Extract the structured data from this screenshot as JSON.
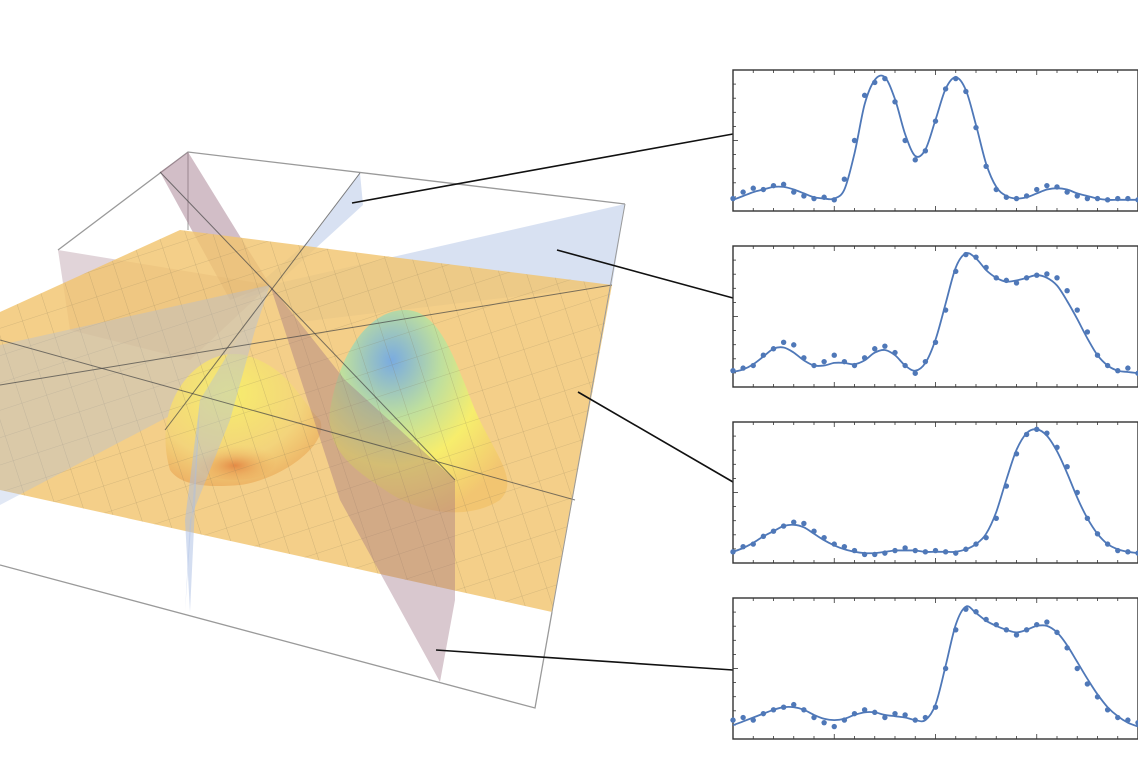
{
  "colors": {
    "series": "#4f78b8",
    "frame": "#333333",
    "leader": "#111111",
    "box": "#9a9a9a",
    "surface": "#f2c46f",
    "surface_peak": "#6fa8e8",
    "surface_yellow": "#f7f06a",
    "plane_pink": "#9c6f82",
    "plane_blue": "#a9bde3"
  },
  "surface_plot": {
    "type": "3d-surface",
    "grid": true,
    "slice_planes": 4
  },
  "chart_data": [
    {
      "type": "scatter",
      "fit": "line",
      "xlim": [
        0,
        40
      ],
      "ylim": [
        0,
        1
      ],
      "x": [
        0,
        1,
        2,
        3,
        4,
        5,
        6,
        7,
        8,
        9,
        10,
        11,
        12,
        13,
        14,
        15,
        16,
        17,
        18,
        19,
        20,
        21,
        22,
        23,
        24,
        25,
        26,
        27,
        28,
        29,
        30,
        31,
        32,
        33,
        34,
        35,
        36,
        37,
        38,
        39,
        40
      ],
      "points": [
        0.05,
        0.1,
        0.13,
        0.12,
        0.15,
        0.16,
        0.1,
        0.07,
        0.05,
        0.06,
        0.04,
        0.2,
        0.5,
        0.85,
        0.95,
        0.98,
        0.8,
        0.5,
        0.35,
        0.42,
        0.65,
        0.9,
        0.98,
        0.88,
        0.6,
        0.3,
        0.12,
        0.06,
        0.05,
        0.07,
        0.12,
        0.15,
        0.14,
        0.1,
        0.07,
        0.05,
        0.05,
        0.04,
        0.05,
        0.05,
        0.04
      ],
      "fit_values": [
        0.04,
        0.07,
        0.1,
        0.12,
        0.14,
        0.14,
        0.12,
        0.09,
        0.06,
        0.05,
        0.05,
        0.12,
        0.4,
        0.78,
        0.97,
        0.99,
        0.82,
        0.55,
        0.38,
        0.43,
        0.66,
        0.9,
        0.99,
        0.89,
        0.62,
        0.32,
        0.14,
        0.07,
        0.05,
        0.06,
        0.09,
        0.12,
        0.13,
        0.12,
        0.09,
        0.07,
        0.05,
        0.04,
        0.04,
        0.04,
        0.04
      ]
    },
    {
      "type": "scatter",
      "fit": "line",
      "xlim": [
        0,
        40
      ],
      "ylim": [
        0,
        1
      ],
      "x": [
        0,
        1,
        2,
        3,
        4,
        5,
        6,
        7,
        8,
        9,
        10,
        11,
        12,
        13,
        14,
        15,
        16,
        17,
        18,
        19,
        20,
        21,
        22,
        23,
        24,
        25,
        26,
        27,
        28,
        29,
        30,
        31,
        32,
        33,
        34,
        35,
        36,
        37,
        38,
        39,
        40
      ],
      "points": [
        0.08,
        0.1,
        0.12,
        0.2,
        0.25,
        0.3,
        0.28,
        0.18,
        0.12,
        0.15,
        0.2,
        0.15,
        0.12,
        0.18,
        0.25,
        0.27,
        0.22,
        0.12,
        0.06,
        0.15,
        0.3,
        0.55,
        0.85,
        0.98,
        0.96,
        0.88,
        0.8,
        0.78,
        0.76,
        0.8,
        0.82,
        0.83,
        0.8,
        0.7,
        0.55,
        0.38,
        0.2,
        0.12,
        0.08,
        0.1,
        0.06
      ],
      "fit_values": [
        0.07,
        0.09,
        0.13,
        0.19,
        0.25,
        0.26,
        0.22,
        0.16,
        0.12,
        0.12,
        0.14,
        0.14,
        0.13,
        0.16,
        0.22,
        0.24,
        0.2,
        0.12,
        0.08,
        0.14,
        0.32,
        0.6,
        0.88,
        0.99,
        0.95,
        0.86,
        0.8,
        0.77,
        0.78,
        0.8,
        0.82,
        0.8,
        0.74,
        0.62,
        0.48,
        0.33,
        0.2,
        0.12,
        0.08,
        0.07,
        0.06
      ]
    },
    {
      "type": "scatter",
      "fit": "line",
      "xlim": [
        0,
        40
      ],
      "ylim": [
        0,
        1
      ],
      "x": [
        0,
        1,
        2,
        3,
        4,
        5,
        6,
        7,
        8,
        9,
        10,
        11,
        12,
        13,
        14,
        15,
        16,
        17,
        18,
        19,
        20,
        21,
        22,
        23,
        24,
        25,
        26,
        27,
        28,
        29,
        30,
        31,
        32,
        33,
        34,
        35,
        36,
        37,
        38,
        39,
        40
      ],
      "points": [
        0.04,
        0.08,
        0.1,
        0.16,
        0.2,
        0.24,
        0.27,
        0.26,
        0.2,
        0.15,
        0.1,
        0.08,
        0.05,
        0.02,
        0.02,
        0.03,
        0.05,
        0.07,
        0.05,
        0.04,
        0.05,
        0.04,
        0.03,
        0.06,
        0.1,
        0.15,
        0.3,
        0.55,
        0.8,
        0.95,
        0.99,
        0.96,
        0.85,
        0.7,
        0.5,
        0.3,
        0.18,
        0.1,
        0.05,
        0.04,
        0.03
      ],
      "fit_values": [
        0.04,
        0.07,
        0.11,
        0.16,
        0.2,
        0.24,
        0.25,
        0.23,
        0.18,
        0.13,
        0.09,
        0.06,
        0.04,
        0.03,
        0.03,
        0.04,
        0.05,
        0.05,
        0.05,
        0.04,
        0.04,
        0.04,
        0.04,
        0.06,
        0.1,
        0.18,
        0.35,
        0.6,
        0.83,
        0.96,
        0.99,
        0.94,
        0.82,
        0.65,
        0.46,
        0.3,
        0.18,
        0.1,
        0.06,
        0.04,
        0.03
      ]
    },
    {
      "type": "scatter",
      "fit": "line",
      "xlim": [
        0,
        40
      ],
      "ylim": [
        0,
        1
      ],
      "x": [
        0,
        1,
        2,
        3,
        4,
        5,
        6,
        7,
        8,
        9,
        10,
        11,
        12,
        13,
        14,
        15,
        16,
        17,
        18,
        19,
        20,
        21,
        22,
        23,
        24,
        25,
        26,
        27,
        28,
        29,
        30,
        31,
        32,
        33,
        34,
        35,
        36,
        37,
        38,
        39,
        40
      ],
      "points": [
        0.1,
        0.12,
        0.1,
        0.15,
        0.18,
        0.2,
        0.22,
        0.18,
        0.12,
        0.08,
        0.05,
        0.1,
        0.15,
        0.18,
        0.16,
        0.12,
        0.15,
        0.14,
        0.1,
        0.12,
        0.2,
        0.5,
        0.8,
        0.96,
        0.94,
        0.88,
        0.84,
        0.8,
        0.76,
        0.8,
        0.84,
        0.86,
        0.78,
        0.66,
        0.5,
        0.38,
        0.28,
        0.18,
        0.12,
        0.1,
        0.08
      ],
      "fit_values": [
        0.06,
        0.09,
        0.12,
        0.15,
        0.18,
        0.2,
        0.2,
        0.18,
        0.14,
        0.11,
        0.1,
        0.11,
        0.14,
        0.16,
        0.16,
        0.14,
        0.13,
        0.12,
        0.1,
        0.1,
        0.22,
        0.52,
        0.84,
        0.98,
        0.93,
        0.87,
        0.83,
        0.8,
        0.78,
        0.8,
        0.83,
        0.83,
        0.78,
        0.68,
        0.55,
        0.42,
        0.3,
        0.2,
        0.13,
        0.08,
        0.05
      ]
    }
  ]
}
